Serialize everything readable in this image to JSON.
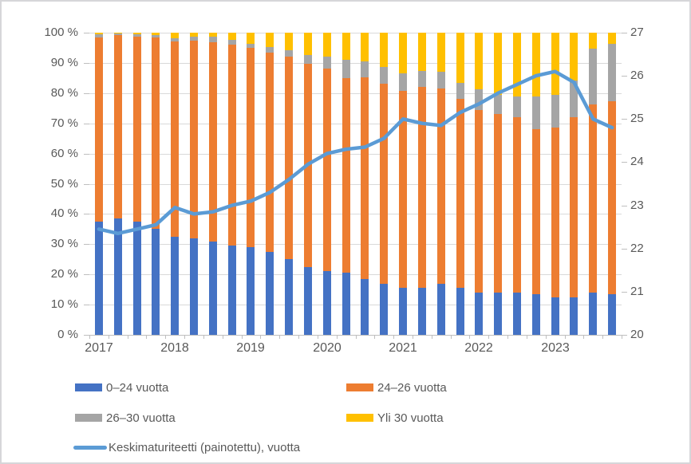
{
  "chart_data": {
    "type": "bar",
    "subtype": "stacked-100-percent-with-line-dual-axis",
    "categories": [
      "2017 Q1",
      "2017 Q2",
      "2017 Q3",
      "2017 Q4",
      "2018 Q1",
      "2018 Q2",
      "2018 Q3",
      "2018 Q4",
      "2019 Q1",
      "2019 Q2",
      "2019 Q3",
      "2019 Q4",
      "2020 Q1",
      "2020 Q2",
      "2020 Q3",
      "2020 Q4",
      "2021 Q1",
      "2021 Q2",
      "2021 Q3",
      "2021 Q4",
      "2022 Q1",
      "2022 Q2",
      "2022 Q3",
      "2022 Q4",
      "2023 Q1",
      "2023 Q2",
      "2023 Q3",
      "2023 Q4"
    ],
    "bar_series": [
      {
        "name": "0–24 vuotta",
        "color": "#4472C4",
        "values": [
          37.5,
          38.5,
          37.5,
          35,
          32.5,
          32,
          31,
          29.5,
          29,
          27.5,
          25,
          22.5,
          21,
          20.5,
          18.5,
          17,
          15.5,
          15.5,
          17,
          15.5,
          14,
          14,
          14,
          13.5,
          12.5,
          12.5,
          14,
          13.5
        ]
      },
      {
        "name": "24–26 vuotta",
        "color": "#ED7D31",
        "values": [
          61,
          60.7,
          61.3,
          63.4,
          64.6,
          65.3,
          65.8,
          66.5,
          66,
          66,
          67,
          67.3,
          67,
          64.5,
          66.7,
          66,
          65.3,
          66.6,
          64.4,
          62.7,
          60.5,
          59.1,
          58,
          54.5,
          56.2,
          59.5,
          62.2,
          63.8
        ]
      },
      {
        "name": "26–30 vuotta",
        "color": "#A5A5A5",
        "values": [
          1,
          0.5,
          0.7,
          0.9,
          1.1,
          1.3,
          1.8,
          1.5,
          1.4,
          1.8,
          2.2,
          2.9,
          4.2,
          6,
          5.3,
          5.7,
          5.7,
          5.3,
          5.7,
          5.3,
          6.8,
          6.3,
          7,
          10.8,
          10.7,
          12.3,
          18.4,
          19.1
        ]
      },
      {
        "name": "Yli 30 vuotta",
        "color": "#FFC000",
        "values": [
          0.5,
          0.3,
          0.5,
          0.7,
          1.8,
          1.4,
          1.4,
          2.5,
          3.6,
          4.7,
          5.8,
          7.3,
          7.8,
          9,
          9.5,
          11.3,
          13.5,
          12.6,
          12.9,
          16.5,
          18.7,
          20.6,
          21,
          21.2,
          20.6,
          15.7,
          5.4,
          3.6
        ]
      }
    ],
    "line_series": {
      "name": "Keskimaturiteetti (painotettu), vuotta",
      "color": "#5B9BD5",
      "axis": "right",
      "values": [
        22.45,
        22.35,
        22.45,
        22.55,
        22.95,
        22.8,
        22.85,
        23.0,
        23.1,
        23.3,
        23.6,
        23.95,
        24.2,
        24.3,
        24.35,
        24.55,
        25.0,
        24.9,
        24.85,
        25.15,
        25.35,
        25.6,
        25.8,
        26.0,
        26.1,
        25.85,
        25.0,
        24.8
      ]
    },
    "left_axis": {
      "min": 0,
      "max": 100,
      "step": 10,
      "labels": [
        "0 %",
        "10 %",
        "20 %",
        "30 %",
        "40 %",
        "50 %",
        "60 %",
        "70 %",
        "80 %",
        "90 %",
        "100 %"
      ]
    },
    "right_axis": {
      "min": 20,
      "max": 27,
      "step": 1,
      "labels": [
        "20",
        "21",
        "22",
        "23",
        "24",
        "25",
        "26",
        "27"
      ]
    },
    "x_axis": {
      "year_labels": [
        "2017",
        "2018",
        "2019",
        "2020",
        "2021",
        "2022",
        "2023"
      ],
      "year_label_indices": [
        0,
        4,
        8,
        12,
        16,
        20,
        24
      ]
    },
    "grid": "horizontal",
    "legend_position": "bottom"
  },
  "style": {
    "gridline_color": "#d9d9d9",
    "axis_line_color": "#bfbfbf",
    "text_color": "#595959",
    "background": "#ffffff"
  }
}
